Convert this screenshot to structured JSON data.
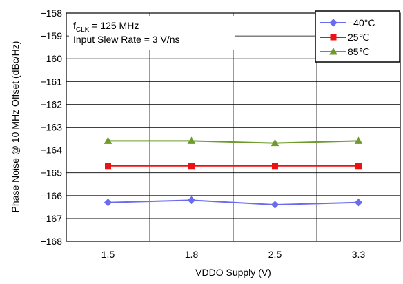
{
  "chart_data": {
    "type": "line",
    "title": "",
    "xlabel": "VDDO Supply (V)",
    "ylabel": "Phase Noise @ 10 MHz Offset (dBc/Hz)",
    "categories": [
      "1.5",
      "1.8",
      "2.5",
      "3.3"
    ],
    "ylim": [
      -168,
      -158
    ],
    "yticks": [
      "−158",
      "−159",
      "−160",
      "−161",
      "−162",
      "−163",
      "−164",
      "−165",
      "−166",
      "−167",
      "−168"
    ],
    "grid": true,
    "legend_position": "top-right",
    "annotation": {
      "f_symbol": "f",
      "f_subscript": "CLK",
      "f_value": " = 125 MHz",
      "line2": "Input Slew Rate = 3 V/ns"
    },
    "series": [
      {
        "name": "−40°C",
        "color": "#6a6cf0",
        "marker": "diamond",
        "values": [
          -166.3,
          -166.2,
          -166.4,
          -166.3
        ]
      },
      {
        "name": "25℃",
        "color": "#ee1111",
        "marker": "square",
        "values": [
          -164.7,
          -164.7,
          -164.7,
          -164.7
        ]
      },
      {
        "name": "85℃",
        "color": "#6f9a2e",
        "marker": "triangle",
        "values": [
          -163.6,
          -163.6,
          -163.7,
          -163.6
        ]
      }
    ]
  }
}
